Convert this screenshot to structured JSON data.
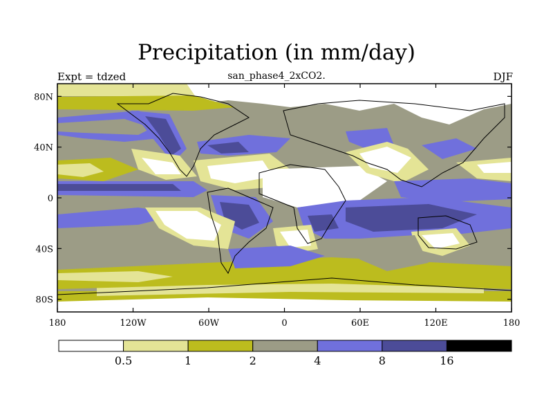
{
  "title": "Precipitation (in mm/day)",
  "subtitle": "san_phase4_2xCO2.",
  "left_label": "Expt = tdzed",
  "right_label": "DJF",
  "colors": {
    "white": "#ffffff",
    "pale": "#e4e496",
    "olive": "#bcbc1e",
    "gray": "#9c9c86",
    "blue": "#7070dc",
    "navy": "#4c4c98",
    "black": "#000000"
  },
  "legend": {
    "colors": [
      "#ffffff",
      "#e4e496",
      "#bcbc1e",
      "#9c9c86",
      "#7070dc",
      "#4c4c98",
      "#000000"
    ],
    "labels": [
      "0.5",
      "1",
      "2",
      "4",
      "8",
      "16"
    ]
  },
  "map": {
    "lat_ticks": [
      {
        "value": 80,
        "label": "80N"
      },
      {
        "value": 40,
        "label": "40N"
      },
      {
        "value": 0,
        "label": "0"
      },
      {
        "value": -40,
        "label": "40S"
      },
      {
        "value": -80,
        "label": "80S"
      }
    ],
    "lon_ticks": [
      {
        "value": -180,
        "label": "180"
      },
      {
        "value": -120,
        "label": "120W"
      },
      {
        "value": -60,
        "label": "60W"
      },
      {
        "value": 0,
        "label": "0"
      },
      {
        "value": 60,
        "label": "60E"
      },
      {
        "value": 120,
        "label": "120E"
      },
      {
        "value": 180,
        "label": "180"
      }
    ]
  }
}
